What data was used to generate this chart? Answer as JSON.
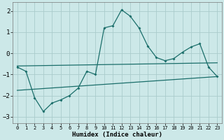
{
  "xlabel": "Humidex (Indice chaleur)",
  "bg_color": "#cce8e8",
  "grid_color": "#aacccc",
  "line_color": "#1a6e6a",
  "ylim": [
    -3.3,
    2.4
  ],
  "xlim": [
    -0.5,
    23.5
  ],
  "yticks": [
    -3,
    -2,
    -1,
    0,
    1,
    2
  ],
  "xticks": [
    0,
    1,
    2,
    3,
    4,
    5,
    6,
    7,
    8,
    9,
    10,
    11,
    12,
    13,
    14,
    15,
    16,
    17,
    18,
    19,
    20,
    21,
    22,
    23
  ],
  "line1_x": [
    0,
    1,
    2,
    3,
    4,
    5,
    6,
    7,
    8,
    9,
    10,
    11,
    12,
    13,
    14,
    15,
    16,
    17,
    18,
    19,
    20,
    21,
    22,
    23
  ],
  "line1_y": [
    -0.65,
    -0.85,
    -2.1,
    -2.75,
    -2.35,
    -2.2,
    -2.0,
    -1.65,
    -0.85,
    -1.0,
    1.2,
    1.3,
    2.05,
    1.75,
    1.2,
    0.35,
    -0.2,
    -0.35,
    -0.25,
    0.05,
    0.3,
    0.45,
    -0.65,
    -1.1
  ],
  "line2_x": [
    0,
    23
  ],
  "line2_y": [
    -0.6,
    -0.45
  ],
  "line3_x": [
    0,
    23
  ],
  "line3_y": [
    -1.75,
    -1.1
  ]
}
